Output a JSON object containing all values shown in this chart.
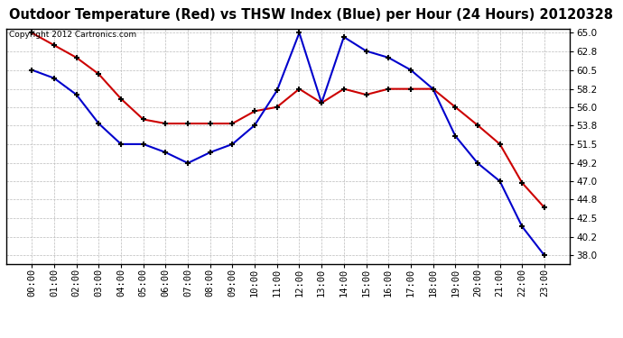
{
  "title": "Outdoor Temperature (Red) vs THSW Index (Blue) per Hour (24 Hours) 20120328",
  "copyright_text": "Copyright 2012 Cartronics.com",
  "hours": [
    "00:00",
    "01:00",
    "02:00",
    "03:00",
    "04:00",
    "05:00",
    "06:00",
    "07:00",
    "08:00",
    "09:00",
    "10:00",
    "11:00",
    "12:00",
    "13:00",
    "14:00",
    "15:00",
    "16:00",
    "17:00",
    "18:00",
    "19:00",
    "20:00",
    "21:00",
    "22:00",
    "23:00"
  ],
  "red_temp": [
    65.0,
    63.5,
    62.0,
    60.0,
    57.0,
    54.5,
    54.0,
    54.0,
    54.0,
    54.0,
    55.5,
    56.0,
    58.2,
    56.5,
    58.2,
    57.5,
    58.2,
    58.2,
    58.2,
    56.0,
    53.8,
    51.5,
    46.8,
    43.8
  ],
  "blue_thsw": [
    60.5,
    59.5,
    57.5,
    54.0,
    51.5,
    51.5,
    50.5,
    49.2,
    50.5,
    51.5,
    53.8,
    58.0,
    65.0,
    56.5,
    64.5,
    62.8,
    62.0,
    60.5,
    58.2,
    52.5,
    49.2,
    47.0,
    41.5,
    38.0
  ],
  "ylim_min": 37.0,
  "ylim_max": 65.5,
  "yticks": [
    38.0,
    40.2,
    42.5,
    44.8,
    47.0,
    49.2,
    51.5,
    53.8,
    56.0,
    58.2,
    60.5,
    62.8,
    65.0
  ],
  "red_color": "#cc0000",
  "blue_color": "#0000cc",
  "bg_color": "#ffffff",
  "grid_color": "#bbbbbb",
  "title_fontsize": 10.5,
  "copyright_fontsize": 6.5,
  "tick_fontsize": 7.5
}
